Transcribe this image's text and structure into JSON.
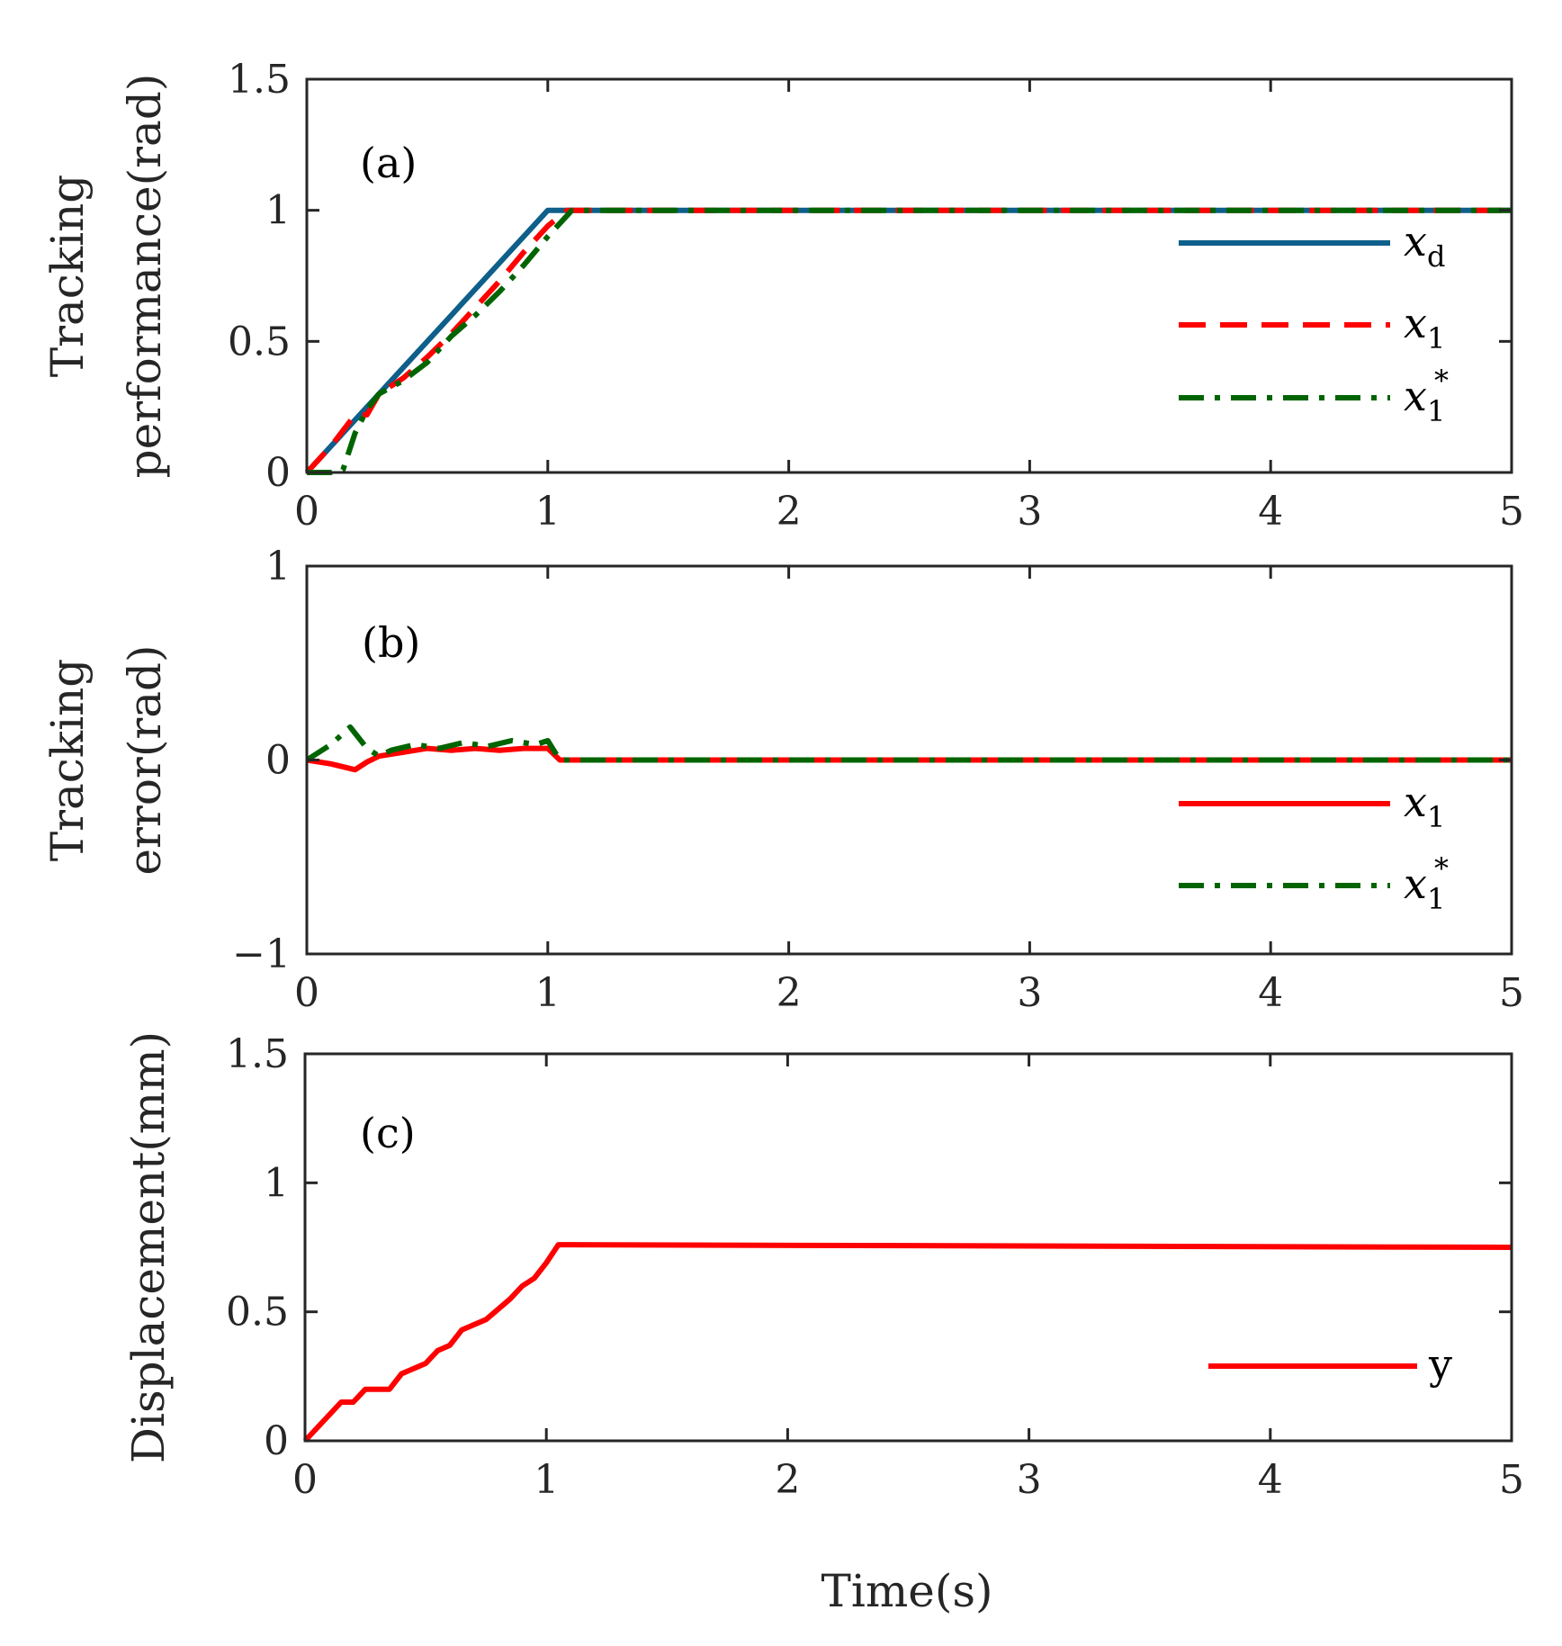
{
  "xlabel": "Time(s)",
  "colors": {
    "xd": "#0e5f8a",
    "x1": "#ff0000",
    "x1star": "#006400",
    "axis": "#262626"
  },
  "chart_data": [
    {
      "type": "line",
      "panel_label": "(a)",
      "ylabel_lines": [
        "Tracking",
        "performance(rad)"
      ],
      "xlim": [
        0,
        5
      ],
      "ylim": [
        0,
        1.5
      ],
      "xticks": [
        "0",
        "1",
        "2",
        "3",
        "4",
        "5"
      ],
      "yticks": [
        "0",
        "0.5",
        "1",
        "1.5"
      ],
      "series": [
        {
          "key": "xd",
          "name": "x",
          "sub": "d",
          "sup": "",
          "style": "solid",
          "x": [
            0,
            1,
            5
          ],
          "y": [
            0,
            1,
            1
          ]
        },
        {
          "key": "x1",
          "name": "x",
          "sub": "1",
          "sup": "",
          "style": "dash",
          "x": [
            0,
            0.1,
            0.2,
            0.25,
            0.3,
            0.4,
            0.5,
            0.6,
            0.7,
            0.8,
            0.9,
            1.0,
            1.08,
            5
          ],
          "y": [
            0,
            0.1,
            0.22,
            0.22,
            0.3,
            0.36,
            0.44,
            0.53,
            0.63,
            0.73,
            0.84,
            0.94,
            1.0,
            1.0
          ]
        },
        {
          "key": "x1star",
          "name": "x",
          "sub": "1",
          "sup": "*",
          "style": "dashdot",
          "x": [
            0,
            0.1,
            0.15,
            0.2,
            0.25,
            0.3,
            0.4,
            0.5,
            0.6,
            0.7,
            0.8,
            0.9,
            1.0,
            1.1,
            5
          ],
          "y": [
            0,
            0,
            0.01,
            0.15,
            0.24,
            0.3,
            0.35,
            0.42,
            0.52,
            0.6,
            0.69,
            0.79,
            0.9,
            1.0,
            1.0
          ]
        }
      ],
      "legend_position": "right"
    },
    {
      "type": "line",
      "panel_label": "(b)",
      "ylabel_lines": [
        "Tracking",
        "error(rad)"
      ],
      "xlim": [
        0,
        5
      ],
      "ylim": [
        -1,
        1
      ],
      "xticks": [
        "0",
        "1",
        "2",
        "3",
        "4",
        "5"
      ],
      "yticks": [
        "−1",
        "0",
        "1"
      ],
      "series": [
        {
          "key": "x1",
          "name": "x",
          "sub": "1",
          "sup": "",
          "style": "solid",
          "x": [
            0,
            0.1,
            0.2,
            0.25,
            0.3,
            0.4,
            0.5,
            0.6,
            0.7,
            0.8,
            0.9,
            1.0,
            1.05,
            5
          ],
          "y": [
            0,
            -0.02,
            -0.05,
            -0.01,
            0.02,
            0.04,
            0.06,
            0.05,
            0.06,
            0.05,
            0.06,
            0.06,
            0,
            0
          ]
        },
        {
          "key": "x1star",
          "name": "x",
          "sub": "1",
          "sup": "*",
          "style": "dashdot",
          "x": [
            0,
            0.1,
            0.18,
            0.25,
            0.3,
            0.35,
            0.45,
            0.55,
            0.65,
            0.75,
            0.85,
            0.95,
            1.0,
            1.05,
            5
          ],
          "y": [
            0,
            0.08,
            0.17,
            0.06,
            0.02,
            0.05,
            0.08,
            0.06,
            0.09,
            0.07,
            0.1,
            0.08,
            0.1,
            0,
            0
          ]
        }
      ],
      "legend_position": "lower-right"
    },
    {
      "type": "line",
      "panel_label": "(c)",
      "ylabel_lines": [
        "Displacement(mm)"
      ],
      "xlim": [
        0,
        5
      ],
      "ylim": [
        0,
        1.5
      ],
      "xticks": [
        "0",
        "1",
        "2",
        "3",
        "4",
        "5"
      ],
      "yticks": [
        "0",
        "0.5",
        "1",
        "1.5"
      ],
      "series": [
        {
          "key": "y",
          "name": "y",
          "sub": "",
          "sup": "",
          "style": "solid",
          "upright": true,
          "x": [
            0,
            0.15,
            0.2,
            0.25,
            0.35,
            0.4,
            0.5,
            0.55,
            0.6,
            0.65,
            0.75,
            0.8,
            0.85,
            0.9,
            0.95,
            1.0,
            1.05,
            5
          ],
          "y": [
            0,
            0.15,
            0.15,
            0.2,
            0.2,
            0.26,
            0.3,
            0.35,
            0.37,
            0.43,
            0.47,
            0.51,
            0.55,
            0.6,
            0.63,
            0.69,
            0.76,
            0.75
          ]
        }
      ],
      "legend_position": "lower-right"
    }
  ]
}
